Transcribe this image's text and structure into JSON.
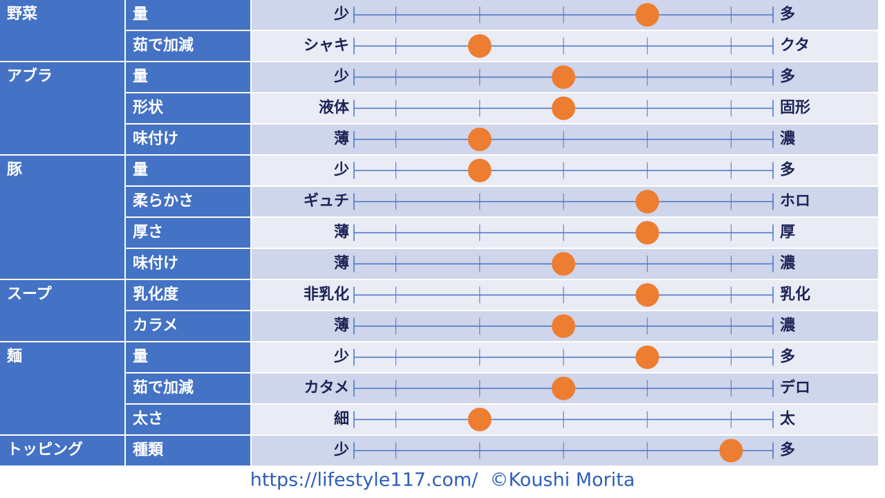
{
  "scale": {
    "xlim": [
      0.5,
      5.5
    ],
    "xticks": [
      1,
      2,
      3,
      4,
      5
    ],
    "dot_color": "#ed7d31",
    "line_color": "#4472c4"
  },
  "groups": [
    {
      "label": "野菜",
      "rows": [
        {
          "item": "量",
          "left": "少",
          "right": "多",
          "value": 4
        },
        {
          "item": "茹で加減",
          "left": "シャキ",
          "right": "クタ",
          "value": 2
        }
      ]
    },
    {
      "label": "アブラ",
      "rows": [
        {
          "item": "量",
          "left": "少",
          "right": "多",
          "value": 3
        },
        {
          "item": "形状",
          "left": "液体",
          "right": "固形",
          "value": 3
        },
        {
          "item": "味付け",
          "left": "薄",
          "right": "濃",
          "value": 2
        }
      ]
    },
    {
      "label": "豚",
      "rows": [
        {
          "item": "量",
          "left": "少",
          "right": "多",
          "value": 2
        },
        {
          "item": "柔らかさ",
          "left": "ギュチ",
          "right": "ホロ",
          "value": 4
        },
        {
          "item": "厚さ",
          "left": "薄",
          "right": "厚",
          "value": 4
        },
        {
          "item": "味付け",
          "left": "薄",
          "right": "濃",
          "value": 3
        }
      ]
    },
    {
      "label": "スープ",
      "rows": [
        {
          "item": "乳化度",
          "left": "非乳化",
          "right": "乳化",
          "value": 4
        },
        {
          "item": "カラメ",
          "left": "薄",
          "right": "濃",
          "value": 3
        }
      ]
    },
    {
      "label": "麺",
      "rows": [
        {
          "item": "量",
          "left": "少",
          "right": "多",
          "value": 4
        },
        {
          "item": "茹で加減",
          "left": "カタメ",
          "right": "デロ",
          "value": 3
        },
        {
          "item": "太さ",
          "left": "細",
          "right": "太",
          "value": 2
        }
      ]
    },
    {
      "label": "トッピング",
      "rows": [
        {
          "item": "種類",
          "left": "少",
          "right": "多",
          "value": 5
        }
      ]
    }
  ],
  "footer": "https://lifestyle117.com/  ©Koushi Morita"
}
